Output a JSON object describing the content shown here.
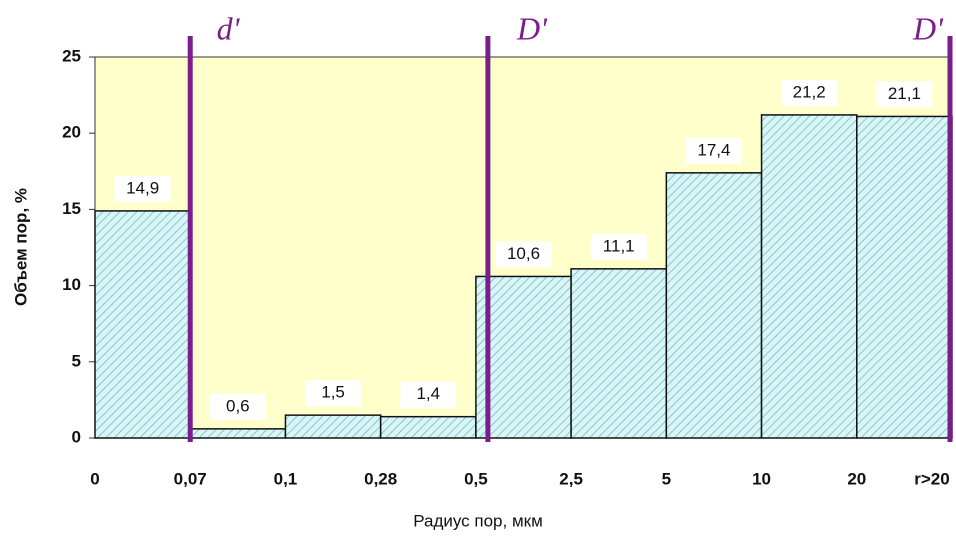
{
  "chart_data": {
    "type": "histogram",
    "bins": [
      "0",
      "0,07",
      "0,1",
      "0,28",
      "0,5",
      "2,5",
      "5",
      "10",
      "20",
      "r>20"
    ],
    "values": [
      14.9,
      0.6,
      1.5,
      1.4,
      10.6,
      11.1,
      17.4,
      21.2,
      21.1
    ],
    "value_labels": [
      "14,9",
      "0,6",
      "1,5",
      "1,4",
      "10,6",
      "11,1",
      "17,4",
      "21,2",
      "21,1"
    ],
    "color": "#d9f5f5",
    "ylim": [
      0,
      25
    ],
    "yticks": [
      0,
      5,
      10,
      15,
      20,
      25
    ],
    "xlabel": "Радиус пор,  мкм",
    "ylabel": "Объем пор, %",
    "annotations": [
      "d'",
      "D'",
      "D'"
    ]
  }
}
